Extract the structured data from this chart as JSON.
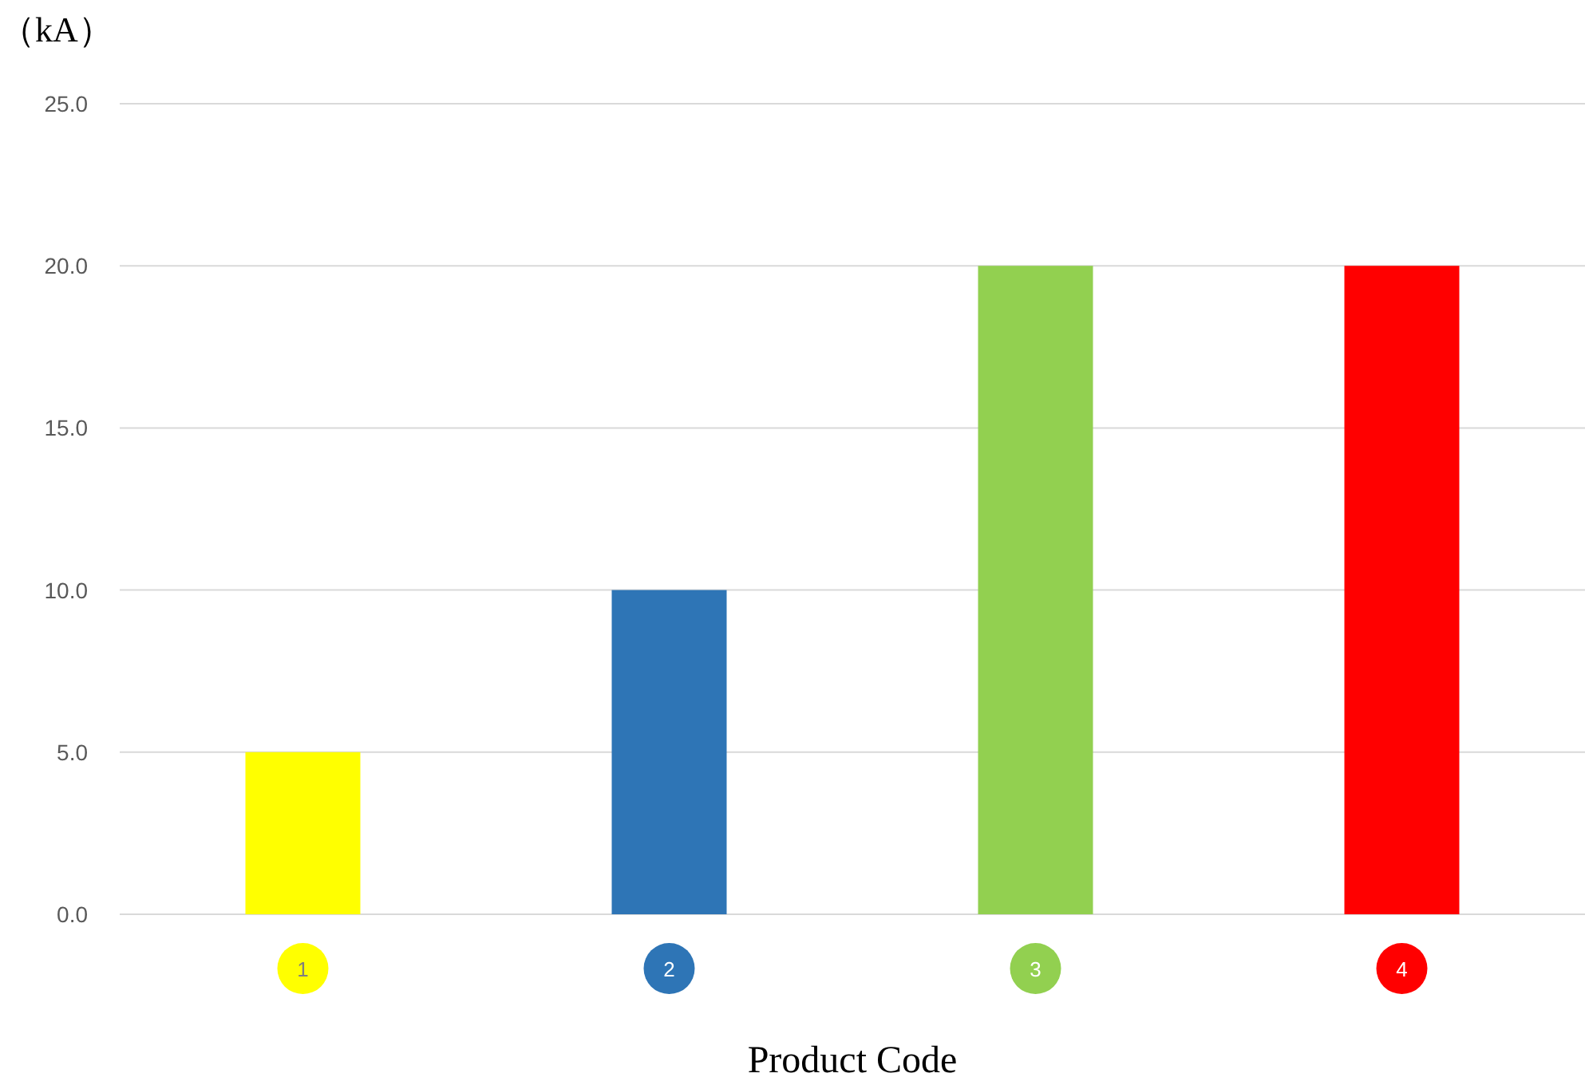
{
  "chart_data": {
    "type": "bar",
    "ylabel": "（kA）",
    "xlabel": "Product Code",
    "categories": [
      "1",
      "2",
      "3",
      "4"
    ],
    "values": [
      5,
      10,
      20,
      20
    ],
    "colors": [
      "#ffff00",
      "#2e75b6",
      "#92d050",
      "#ff0000"
    ],
    "ylim": [
      0,
      25
    ],
    "yticks": [
      {
        "value": 0,
        "label": "0.0"
      },
      {
        "value": 5,
        "label": "5.0"
      },
      {
        "value": 10,
        "label": "10.0"
      },
      {
        "value": 15,
        "label": "15.0"
      },
      {
        "value": 20,
        "label": "20.0"
      },
      {
        "value": 25,
        "label": "25.0"
      }
    ],
    "grid": "y"
  }
}
